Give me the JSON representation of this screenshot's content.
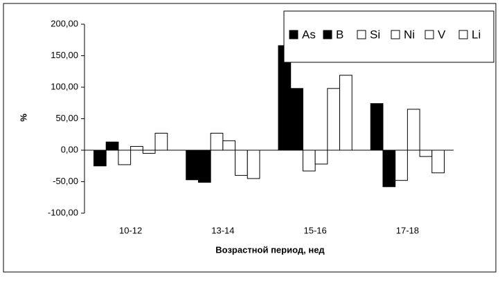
{
  "chart_data": {
    "type": "bar",
    "x_label": "Возрастной период, нед",
    "y_label": "%",
    "categories": [
      "10-12",
      "13-14",
      "15-16",
      "17-18"
    ],
    "series": [
      {
        "name": "As",
        "color": "#000000",
        "values": [
          -25,
          -47,
          166,
          74
        ]
      },
      {
        "name": "B",
        "color": "#000000",
        "values": [
          13,
          -51,
          98,
          -58
        ]
      },
      {
        "name": "Si",
        "color": "#ffffff",
        "values": [
          -23,
          27,
          -33,
          -48
        ]
      },
      {
        "name": "Ni",
        "color": "#ffffff",
        "values": [
          6,
          15,
          -22,
          65
        ]
      },
      {
        "name": "V",
        "color": "#ffffff",
        "values": [
          -5,
          -40,
          98,
          -10
        ]
      },
      {
        "name": "Li",
        "color": "#ffffff",
        "values": [
          27,
          -45,
          119,
          -36
        ]
      }
    ],
    "ylim": [
      -100,
      200
    ],
    "yticks": [
      {
        "value": -100,
        "label": "-100,00"
      },
      {
        "value": -50,
        "label": "-50,00"
      },
      {
        "value": 0,
        "label": "0,00"
      },
      {
        "value": 50,
        "label": "50,00"
      },
      {
        "value": 100,
        "label": "100,00"
      },
      {
        "value": 150,
        "label": "150,00"
      },
      {
        "value": 200,
        "label": "200,00"
      }
    ],
    "legend": "top-right"
  }
}
